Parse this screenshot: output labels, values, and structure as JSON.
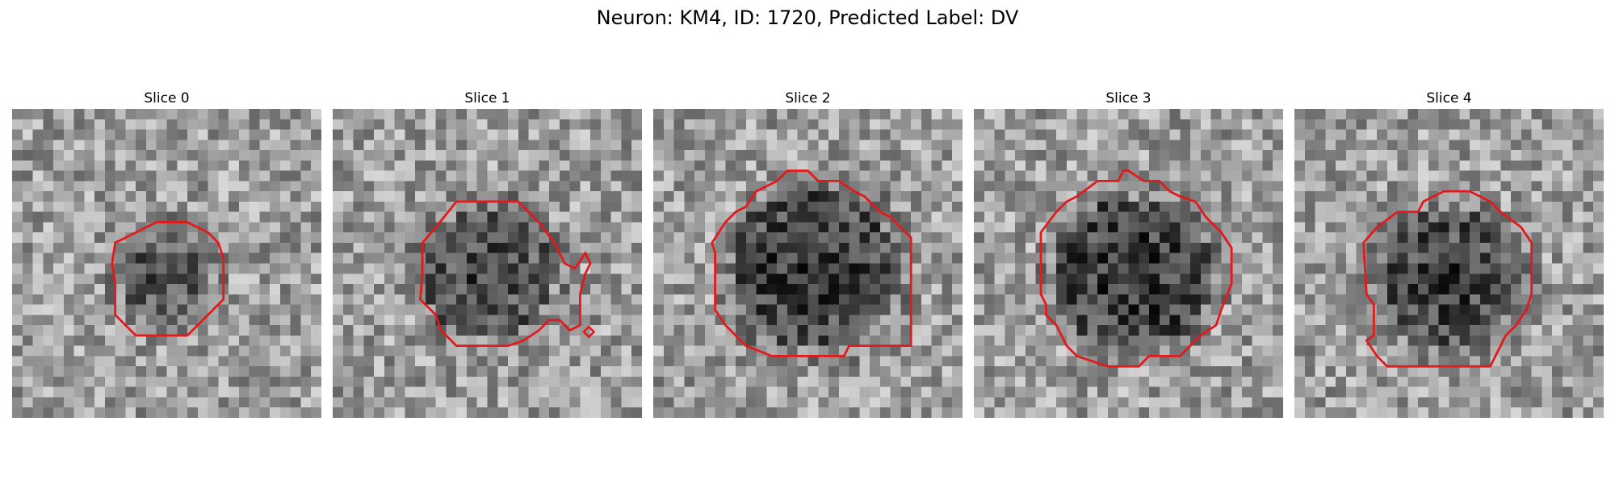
{
  "figure": {
    "title": "Neuron: KM4, ID: 1720, Predicted Label: DV"
  },
  "panels": [
    {
      "title": "Slice 0",
      "darkness": 0.45,
      "contour_color": "#e31a1c",
      "pixel_seed": 11
    },
    {
      "title": "Slice 1",
      "darkness": 0.5,
      "contour_color": "#e31a1c",
      "pixel_seed": 23
    },
    {
      "title": "Slice 2",
      "darkness": 0.6,
      "contour_color": "#e31a1c",
      "pixel_seed": 37
    },
    {
      "title": "Slice 3",
      "darkness": 0.62,
      "contour_color": "#e31a1c",
      "pixel_seed": 41
    },
    {
      "title": "Slice 4",
      "darkness": 0.55,
      "contour_color": "#e31a1c",
      "pixel_seed": 53
    }
  ],
  "colormap": "gray",
  "contour_color": "#e31a1c"
}
